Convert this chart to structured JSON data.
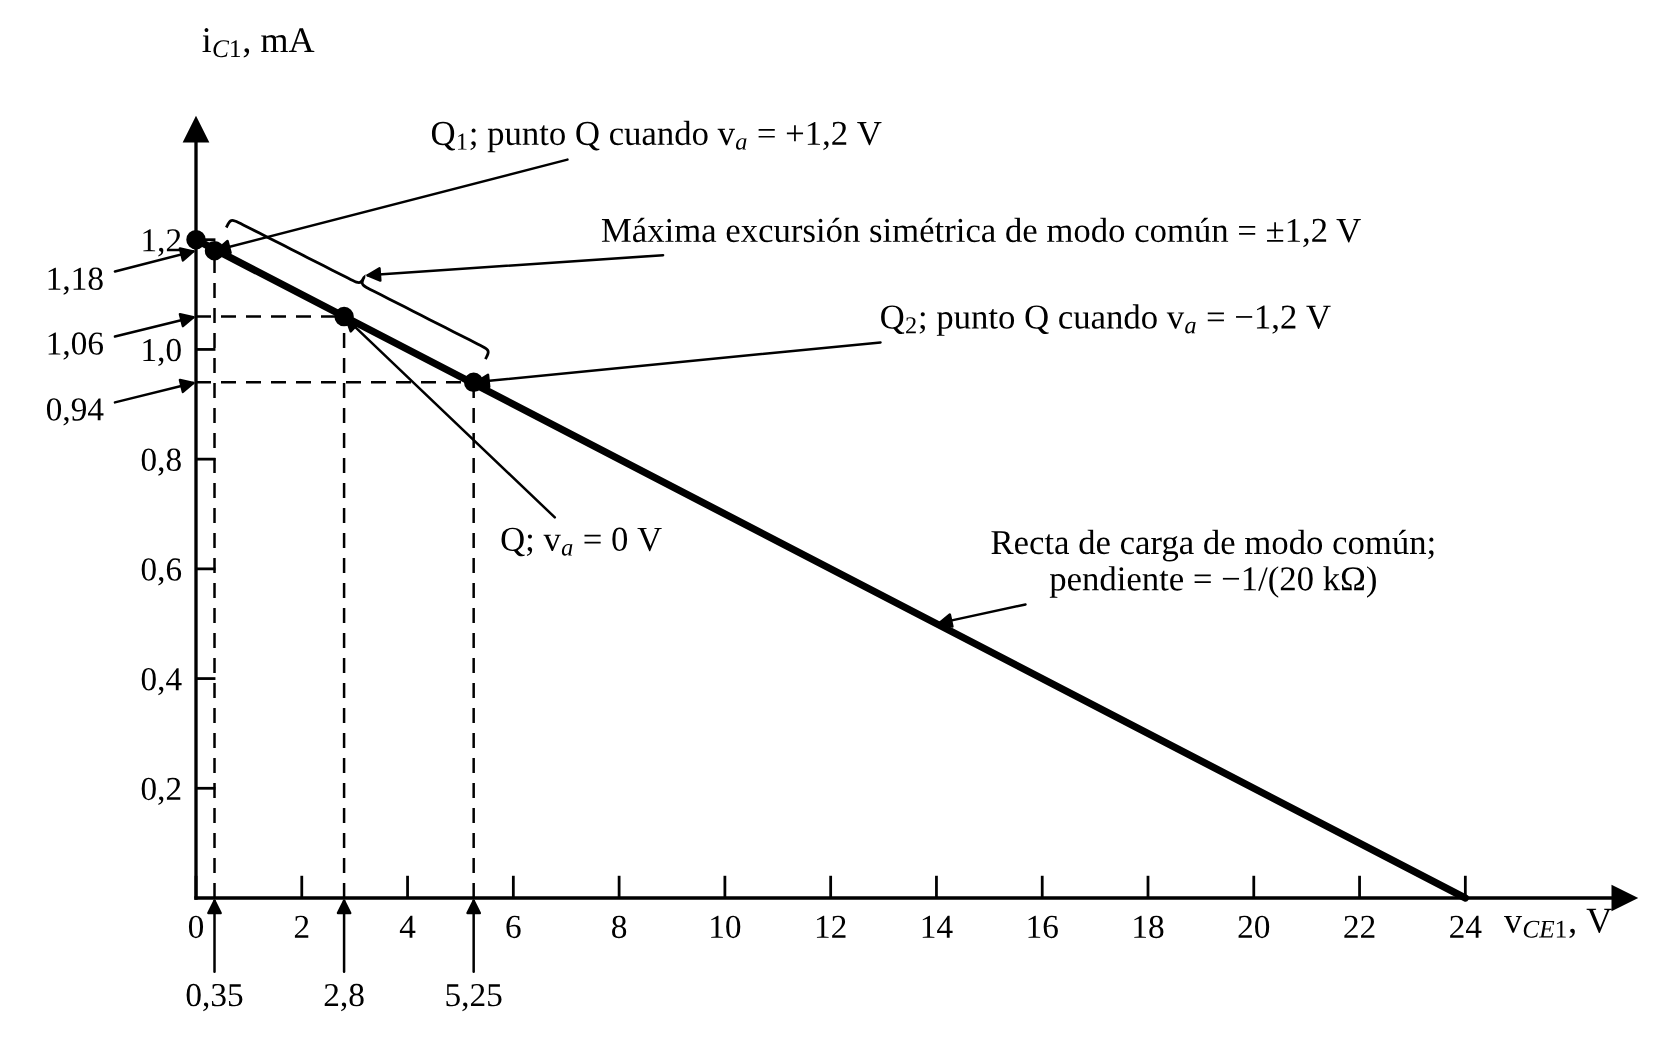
{
  "chart_data": {
    "type": "line",
    "xlabel": "v$_{CE1}$, V",
    "ylabel": "i$_{C1}$, mA",
    "xlim": [
      0,
      27
    ],
    "ylim": [
      0,
      1.4
    ],
    "xticks": [
      0,
      2,
      4,
      6,
      8,
      10,
      12,
      14,
      16,
      18,
      20,
      22,
      24
    ],
    "yticks": [
      {
        "value": 0.2,
        "label": "0,2"
      },
      {
        "value": 0.4,
        "label": "0,4"
      },
      {
        "value": 0.6,
        "label": "0,6"
      },
      {
        "value": 0.8,
        "label": "0,8"
      },
      {
        "value": 1.0,
        "label": "1,0"
      },
      {
        "value": 1.2,
        "label": "1,2"
      }
    ],
    "grid": false,
    "series": [
      {
        "color": "#000000",
        "line_style": "dashed",
        "x": [
          0.35,
          0.35
        ],
        "values": [
          0,
          1.18
        ]
      },
      {
        "color": "#000000",
        "line_style": "dashed",
        "x": [
          2.8,
          2.8
        ],
        "values": [
          0,
          1.06
        ]
      },
      {
        "color": "#000000",
        "line_style": "dashed",
        "x": [
          5.25,
          5.25
        ],
        "values": [
          0,
          0.94
        ]
      },
      {
        "color": "#000000",
        "line_style": "dashed",
        "x": [
          0,
          2.8
        ],
        "values": [
          1.06,
          1.06
        ]
      },
      {
        "color": "#000000",
        "line_style": "dashed",
        "x": [
          0,
          5.25
        ],
        "values": [
          0.94,
          0.94
        ]
      },
      {
        "color": "#000000",
        "line_style": "solid",
        "x": [
          0,
          24
        ],
        "values": [
          1.2,
          0
        ]
      },
      {
        "type": "scatter",
        "color": "#000000",
        "marker": "circle",
        "x": [
          0,
          0.35,
          2.8,
          5.25
        ],
        "values": [
          1.2,
          1.18,
          1.06,
          0.94
        ]
      }
    ],
    "annotations": [
      {
        "text": "Q$_{1}$; punto Q cuando v$_{a}$ = +1,2 V",
        "x": 0.35,
        "y": 1.18
      },
      "Máxima excursión simétrica de modo común = ±1,2 V",
      {
        "text": "Q$_{2}$; punto Q cuando v$_{a}$ = −1,2 V",
        "x": 5.25,
        "y": 0.94
      },
      {
        "text": "Q; v$_{a}$ = 0 V",
        "x": 2.8,
        "y": 1.06
      },
      {
        "text": "Recta de carga de modo común;\npendiente = −1/(20 kΩ)",
        "x": 14,
        "y": 0.5
      },
      {
        "text": "0,35",
        "x": 0.35,
        "y": 0
      },
      {
        "text": "2,8",
        "x": 2.8,
        "y": 0
      },
      {
        "text": "5,25",
        "x": 5.25,
        "y": 0
      },
      {
        "text": "1,18",
        "x": 0,
        "y": 1.18
      },
      {
        "text": "1,06",
        "x": 0,
        "y": 1.06
      },
      {
        "text": "0,94",
        "x": 0,
        "y": 0.94
      }
    ]
  }
}
